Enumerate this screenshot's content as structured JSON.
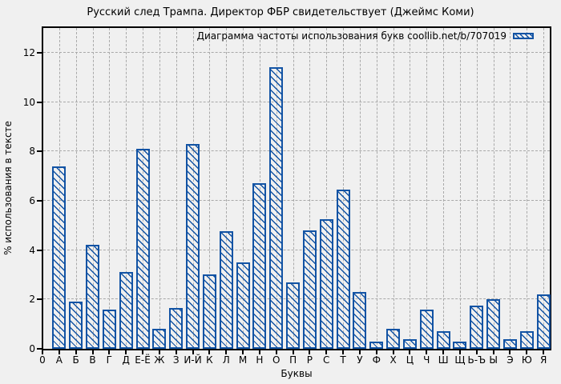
{
  "chart_data": {
    "type": "bar",
    "title": "Русский след Трампа. Директор ФБР свидетельствует (Джеймс Коми)",
    "legend_label": "Диаграмма частоты использования букв coollib.net/b/707019",
    "xlabel": "Буквы",
    "ylabel": "% использования в тексте",
    "x_origin_label": "0",
    "categories": [
      "А",
      "Б",
      "В",
      "Г",
      "Д",
      "Е-Ё",
      "Ж",
      "З",
      "И-Й",
      "К",
      "Л",
      "М",
      "Н",
      "О",
      "П",
      "Р",
      "С",
      "Т",
      "У",
      "Ф",
      "Х",
      "Ц",
      "Ч",
      "Ш",
      "Щ",
      "Ь-Ъ",
      "Ы",
      "Э",
      "Ю",
      "Я"
    ],
    "values": [
      7.4,
      1.9,
      4.2,
      1.6,
      3.1,
      8.1,
      0.8,
      1.65,
      8.3,
      3.0,
      4.75,
      3.5,
      6.7,
      11.4,
      2.7,
      4.8,
      5.25,
      6.45,
      2.3,
      0.3,
      0.8,
      0.4,
      1.6,
      0.7,
      0.3,
      1.75,
      2.0,
      0.4,
      0.7,
      2.2
    ],
    "yticks": [
      0,
      2,
      4,
      6,
      8,
      10,
      12
    ],
    "ylim": [
      0,
      13
    ],
    "grid": true,
    "legend_position": "top-right",
    "bar_color": "#1253a4",
    "grid_color": "#a9a9a9",
    "background_color": "#f0f0f0"
  }
}
